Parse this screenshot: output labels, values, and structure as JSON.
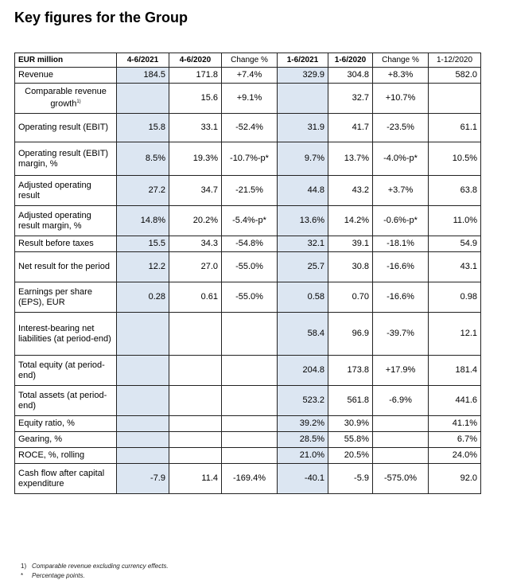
{
  "title": "Key figures for the Group",
  "table": {
    "headers": [
      "EUR million",
      "4-6/2021",
      "4-6/2020",
      "Change %",
      "1-6/2021",
      "1-6/2020",
      "Change %",
      "1-12/2020"
    ],
    "rows": [
      {
        "label": "Revenue",
        "values": [
          "184.5",
          "171.8",
          "+7.4%",
          "329.9",
          "304.8",
          "+8.3%",
          "582.0"
        ]
      },
      {
        "label": "Comparable revenue growth",
        "sup": "1)",
        "values": [
          "",
          "15.6",
          "+9.1%",
          "",
          "32.7",
          "+10.7%",
          ""
        ]
      },
      {
        "label": "Operating result (EBIT)",
        "values": [
          "15.8",
          "33.1",
          "-52.4%",
          "31.9",
          "41.7",
          "-23.5%",
          "61.1"
        ]
      },
      {
        "label": "Operating result (EBIT) margin, %",
        "values": [
          "8.5%",
          "19.3%",
          "-10.7%-p*",
          "9.7%",
          "13.7%",
          "-4.0%-p*",
          "10.5%"
        ]
      },
      {
        "label": "Adjusted operating result",
        "values": [
          "27.2",
          "34.7",
          "-21.5%",
          "44.8",
          "43.2",
          "+3.7%",
          "63.8"
        ]
      },
      {
        "label": "Adjusted operating result margin, %",
        "values": [
          "14.8%",
          "20.2%",
          "-5.4%-p*",
          "13.6%",
          "14.2%",
          "-0.6%-p*",
          "11.0%"
        ]
      },
      {
        "label": "Result before taxes",
        "values": [
          "15.5",
          "34.3",
          "-54.8%",
          "32.1",
          "39.1",
          "-18.1%",
          "54.9"
        ]
      },
      {
        "label": "Net result for the period",
        "values": [
          "12.2",
          "27.0",
          "-55.0%",
          "25.7",
          "30.8",
          "-16.6%",
          "43.1"
        ]
      },
      {
        "label": "Earnings per share (EPS), EUR",
        "values": [
          "0.28",
          "0.61",
          "-55.0%",
          "0.58",
          "0.70",
          "-16.6%",
          "0.98"
        ]
      },
      {
        "label": "Interest-bearing net liabilities (at period-end)",
        "values": [
          "",
          "",
          "",
          "58.4",
          "96.9",
          "-39.7%",
          "12.1"
        ]
      },
      {
        "label": "Total equity (at period-end)",
        "values": [
          "",
          "",
          "",
          "204.8",
          "173.8",
          "+17.9%",
          "181.4"
        ]
      },
      {
        "label": "Total assets (at period-end)",
        "values": [
          "",
          "",
          "",
          "523.2",
          "561.8",
          "-6.9%",
          "441.6"
        ]
      },
      {
        "label": "Equity ratio, %",
        "values": [
          "",
          "",
          "",
          "39.2%",
          "30.9%",
          "",
          "41.1%"
        ]
      },
      {
        "label": "Gearing, %",
        "values": [
          "",
          "",
          "",
          "28.5%",
          "55.8%",
          "",
          "6.7%"
        ]
      },
      {
        "label": "ROCE, %, rolling",
        "values": [
          "",
          "",
          "",
          "21.0%",
          "20.5%",
          "",
          "24.0%"
        ]
      },
      {
        "label": "Cash flow after capital expenditure",
        "values": [
          "-7.9",
          "11.4",
          "-169.4%",
          "-40.1",
          "-5.9",
          "-575.0%",
          "92.0"
        ]
      }
    ],
    "highlight_color": "#dce6f2"
  },
  "footnotes": [
    {
      "mark": "1)",
      "text": "Comparable revenue excluding currency effects."
    },
    {
      "mark": "*",
      "text": "Percentage points."
    }
  ]
}
